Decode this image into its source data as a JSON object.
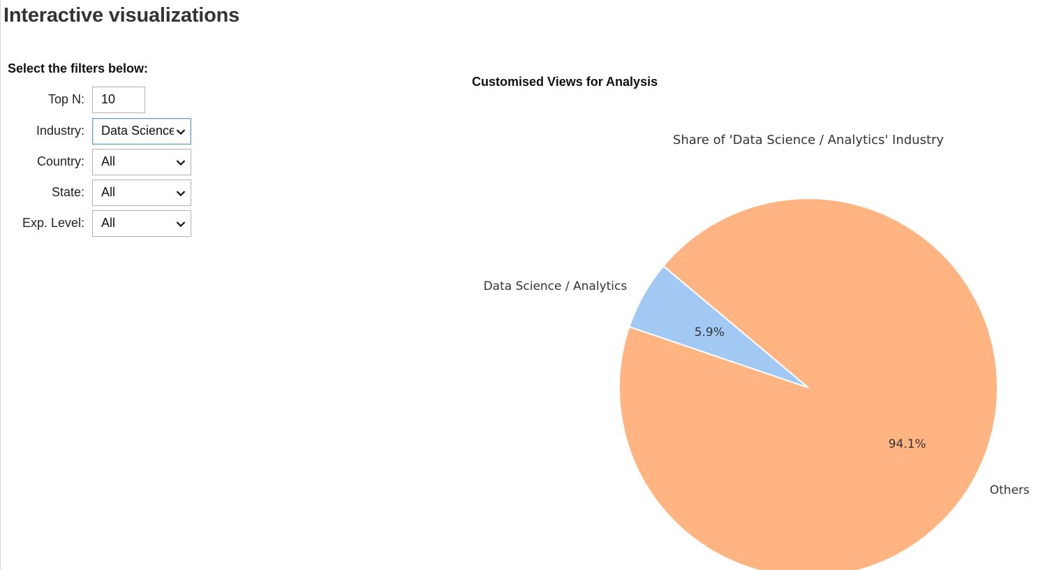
{
  "page": {
    "title": "Interactive visualizations"
  },
  "filters": {
    "heading": "Select the filters below:",
    "top_n": {
      "label": "Top N:",
      "value": "10"
    },
    "industry": {
      "label": "Industry:",
      "value": "Data Science / Analytics"
    },
    "country": {
      "label": "Country:",
      "value": "All"
    },
    "state": {
      "label": "State:",
      "value": "All"
    },
    "exp_level": {
      "label": "Exp. Level:",
      "value": "All"
    }
  },
  "chart_section": {
    "title": "Customised Views for Analysis"
  },
  "chart_data": {
    "type": "pie",
    "title": "Share of 'Data Science / Analytics' Industry",
    "slices": [
      {
        "label": "Data Science / Analytics",
        "value": 5.9,
        "pct_label": "5.9%",
        "color": "#a1c9f4"
      },
      {
        "label": "Others",
        "value": 94.1,
        "pct_label": "94.1%",
        "color": "#ffb482"
      }
    ],
    "start_angle_deg": 140,
    "direction": "counterclockwise"
  },
  "icons": {
    "dropdown": "chevron-down-icon"
  }
}
